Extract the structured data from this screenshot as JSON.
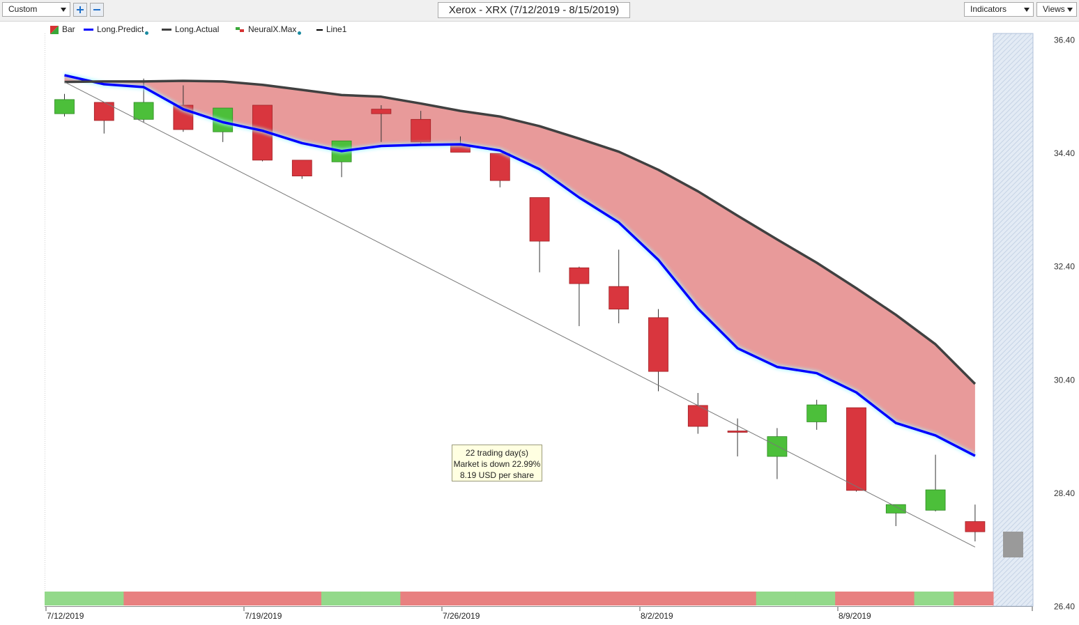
{
  "toolbar": {
    "view_select": "Custom",
    "chart_title": "Xerox - XRX (7/12/2019 - 8/15/2019)",
    "indicators_label": "Indicators",
    "views_label": "Views"
  },
  "icons": {
    "add": "plus-icon",
    "remove": "minus-icon",
    "dropdown": "chevron-down-icon"
  },
  "legend": [
    {
      "label": "Bar",
      "color": "#d63434"
    },
    {
      "label": "Long.Predict",
      "color": "#0000ff"
    },
    {
      "label": "Long.Actual",
      "color": "#404040"
    },
    {
      "label": "NeuralX.Max",
      "color": "#39a839"
    },
    {
      "label": "Line1",
      "color": "#000000"
    }
  ],
  "callout": {
    "line1": "22 trading day(s)",
    "line2": "Market is down 22.99%",
    "line3": "8.19 USD per share"
  },
  "colors": {
    "up": "#4cbf3a",
    "down": "#d9363e",
    "fill_between": "#e89a9a",
    "predict": "#0000ff",
    "actual": "#404040",
    "band_up": "#93d98a",
    "band_down": "#e88080"
  },
  "chart_data": {
    "type": "candlestick",
    "title": "Xerox - XRX (7/12/2019 - 8/15/2019)",
    "ylim": [
      26.4,
      36.4
    ],
    "y_ticks": [
      "36.40",
      "34.40",
      "32.40",
      "30.40",
      "28.40",
      "26.40"
    ],
    "x_tick_labels": [
      {
        "label": "7/12/2019",
        "index": 0
      },
      {
        "label": "7/19/2019",
        "index": 5
      },
      {
        "label": "7/26/2019",
        "index": 10
      },
      {
        "label": "8/2/2019",
        "index": 15
      },
      {
        "label": "8/9/2019",
        "index": 20
      }
    ],
    "candles": [
      {
        "o": 35.1,
        "h": 35.45,
        "c": 35.35,
        "l": 35.05
      },
      {
        "o": 35.3,
        "h": 35.3,
        "c": 34.98,
        "l": 34.75
      },
      {
        "o": 35.0,
        "h": 35.72,
        "c": 35.3,
        "l": 34.95
      },
      {
        "o": 35.25,
        "h": 35.6,
        "c": 34.82,
        "l": 34.78
      },
      {
        "o": 34.78,
        "h": 35.2,
        "c": 35.2,
        "l": 34.6
      },
      {
        "o": 35.25,
        "h": 35.25,
        "c": 34.28,
        "l": 34.26
      },
      {
        "o": 34.28,
        "h": 34.28,
        "c": 34.0,
        "l": 33.95
      },
      {
        "o": 34.25,
        "h": 34.62,
        "c": 34.62,
        "l": 33.98
      },
      {
        "o": 35.18,
        "h": 35.25,
        "c": 35.1,
        "l": 34.6
      },
      {
        "o": 35.0,
        "h": 35.15,
        "c": 34.6,
        "l": 34.55
      },
      {
        "o": 34.55,
        "h": 34.7,
        "c": 34.42,
        "l": 34.42
      },
      {
        "o": 34.4,
        "h": 34.4,
        "c": 33.92,
        "l": 33.8
      },
      {
        "o": 33.62,
        "h": 33.62,
        "c": 32.85,
        "l": 32.3
      },
      {
        "o": 32.38,
        "h": 32.4,
        "c": 32.1,
        "l": 31.35
      },
      {
        "o": 32.05,
        "h": 32.7,
        "c": 31.65,
        "l": 31.4
      },
      {
        "o": 31.5,
        "h": 31.65,
        "c": 30.55,
        "l": 30.2
      },
      {
        "o": 29.95,
        "h": 30.17,
        "c": 29.58,
        "l": 29.45
      },
      {
        "o": 29.5,
        "h": 29.72,
        "c": 29.48,
        "l": 29.05
      },
      {
        "o": 29.05,
        "h": 29.55,
        "c": 29.4,
        "l": 28.65
      },
      {
        "o": 29.66,
        "h": 30.05,
        "c": 29.96,
        "l": 29.52
      },
      {
        "o": 29.91,
        "h": 29.91,
        "c": 28.45,
        "l": 28.43
      },
      {
        "o": 28.05,
        "h": 28.2,
        "c": 28.2,
        "l": 27.82
      },
      {
        "o": 28.1,
        "h": 29.08,
        "c": 28.46,
        "l": 28.08
      },
      {
        "o": 27.9,
        "h": 28.2,
        "c": 27.72,
        "l": 27.55
      }
    ],
    "series": [
      {
        "name": "Long.Predict",
        "values": [
          35.78,
          35.62,
          35.57,
          35.18,
          34.95,
          34.8,
          34.58,
          34.44,
          34.53,
          34.55,
          34.56,
          34.45,
          34.12,
          33.62,
          33.18,
          32.52,
          31.66,
          30.96,
          30.63,
          30.52,
          30.18,
          29.64,
          29.42,
          29.06
        ]
      },
      {
        "name": "Long.Actual",
        "values": [
          35.66,
          35.67,
          35.67,
          35.68,
          35.67,
          35.61,
          35.52,
          35.43,
          35.4,
          35.28,
          35.15,
          35.05,
          34.88,
          34.66,
          34.43,
          34.11,
          33.73,
          33.3,
          32.88,
          32.47,
          32.02,
          31.55,
          31.03,
          30.33
        ]
      },
      {
        "name": "Line1",
        "points": [
          {
            "index": 0,
            "value": 35.66
          },
          {
            "index": 23,
            "value": 27.45
          }
        ]
      }
    ],
    "regime_band": [
      "up",
      "up",
      "down",
      "down",
      "down",
      "down",
      "down",
      "up",
      "up",
      "down",
      "down",
      "down",
      "down",
      "down",
      "down",
      "down",
      "down",
      "down",
      "up",
      "up",
      "down",
      "down",
      "up",
      "down"
    ]
  }
}
